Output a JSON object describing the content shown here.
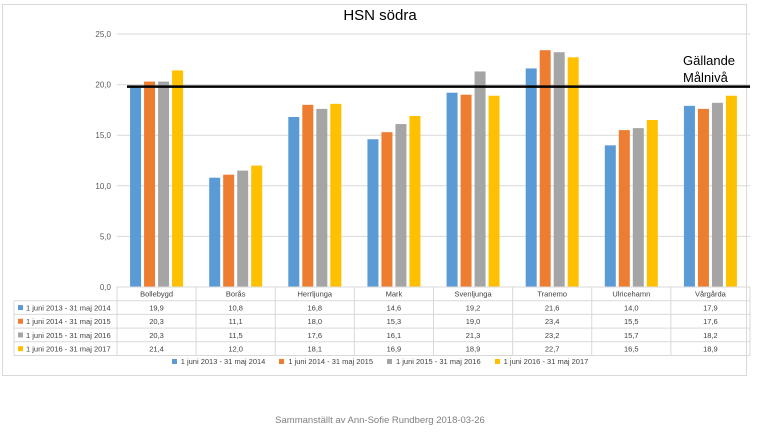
{
  "chart_data": {
    "type": "bar",
    "title": "HSN södra",
    "categories": [
      "Bollebygd",
      "Borås",
      "Herrljunga",
      "Mark",
      "Svenljunga",
      "Tranemo",
      "Ulricehamn",
      "Vårgårda"
    ],
    "series": [
      {
        "name": "1 juni 2013 - 31 maj 2014",
        "color": "#5b9bd5",
        "values": [
          19.9,
          10.8,
          16.8,
          14.6,
          19.2,
          21.6,
          14.0,
          17.9
        ]
      },
      {
        "name": "1 juni 2014 - 31 maj 2015",
        "color": "#ed7d31",
        "values": [
          20.3,
          11.1,
          18.0,
          15.3,
          19.0,
          23.4,
          15.5,
          17.6
        ]
      },
      {
        "name": "1 juni 2015 - 31 maj 2016",
        "color": "#a5a5a5",
        "values": [
          20.3,
          11.5,
          17.6,
          16.1,
          21.3,
          23.2,
          15.7,
          18.2
        ]
      },
      {
        "name": "1 juni 2016 - 31 maj 2017",
        "color": "#ffc000",
        "values": [
          21.4,
          12.0,
          18.1,
          16.9,
          18.9,
          22.7,
          16.5,
          18.9
        ]
      }
    ],
    "ylim": [
      0,
      25
    ],
    "yticks": [
      "0,0",
      "5,0",
      "10,0",
      "15,0",
      "20,0",
      "25,0"
    ],
    "grid": true,
    "data_table": true,
    "target_line": {
      "value": 19.8,
      "label_line1": "Gällande",
      "label_line2": "Målnivå",
      "color": "#000000"
    },
    "legend_position": "bottom"
  },
  "footer": "Sammanställt av Ann-Sofie Rundberg 2018-03-26"
}
